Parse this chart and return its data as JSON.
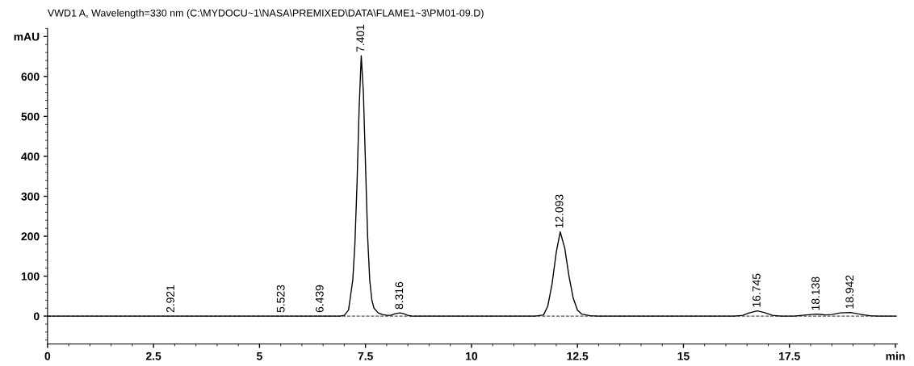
{
  "chart_data": {
    "type": "line",
    "title": "VWD1 A, Wavelength=330 nm (C:\\MYDOCU~1\\NASA\\PREMIXED\\DATA\\FLAME1~3\\PM01-09.D)",
    "series": [
      {
        "color": "#000000",
        "x": [
          0,
          2.7,
          2.92,
          3.1,
          5.4,
          5.52,
          5.7,
          6.3,
          6.44,
          6.6,
          6.9,
          7.0,
          7.1,
          7.2,
          7.25,
          7.3,
          7.35,
          7.4,
          7.45,
          7.5,
          7.55,
          7.6,
          7.65,
          7.7,
          7.8,
          7.9,
          8.0,
          8.1,
          8.2,
          8.316,
          8.4,
          8.5,
          8.6,
          11.5,
          11.7,
          11.8,
          11.9,
          12.0,
          12.093,
          12.2,
          12.3,
          12.4,
          12.5,
          12.6,
          12.8,
          13.0,
          16.2,
          16.4,
          16.55,
          16.745,
          16.9,
          17.1,
          17.3,
          17.6,
          17.9,
          18.138,
          18.35,
          18.5,
          18.7,
          18.942,
          19.2,
          19.4,
          19.6,
          20
        ],
        "values": [
          0,
          0,
          0,
          0,
          0,
          0,
          0,
          0,
          0,
          0,
          0,
          2,
          15,
          90,
          180,
          330,
          520,
          652,
          560,
          380,
          200,
          90,
          40,
          20,
          8,
          4,
          2,
          2,
          6,
          8,
          6,
          2,
          0,
          0,
          3,
          25,
          80,
          160,
          211,
          170,
          100,
          45,
          15,
          5,
          1,
          0,
          0,
          2,
          8,
          13,
          9,
          2,
          0,
          0,
          3,
          5,
          3,
          4,
          8,
          9,
          4,
          1,
          0,
          0
        ]
      }
    ],
    "xlim": [
      0,
      20.05
    ],
    "ylim": [
      -70,
      720
    ],
    "xticks": [
      0,
      2.5,
      5,
      7.5,
      10,
      12.5,
      15,
      17.5,
      {
        "value": 20,
        "label": "min"
      }
    ],
    "yticks": [
      0,
      100,
      200,
      300,
      400,
      500,
      600,
      {
        "value": 700,
        "label": "mAU"
      }
    ],
    "ref_lines": [
      {
        "axis": "y",
        "value": 0,
        "color": "#555555",
        "line_style": "dashed"
      }
    ],
    "annotations": [
      {
        "text": "2.921",
        "x": 2.921,
        "y": 0
      },
      {
        "text": "5.523",
        "x": 5.523,
        "y": 0
      },
      {
        "text": "6.439",
        "x": 6.439,
        "y": 0
      },
      {
        "text": "7.401",
        "x": 7.401,
        "y": 652
      },
      {
        "text": "8.316",
        "x": 8.316,
        "y": 8
      },
      {
        "text": "12.093",
        "x": 12.093,
        "y": 211
      },
      {
        "text": "16.745",
        "x": 16.745,
        "y": 13
      },
      {
        "text": "18.138",
        "x": 18.138,
        "y": 5
      },
      {
        "text": "18.942",
        "x": 18.942,
        "y": 9
      }
    ],
    "grid": false,
    "legend": false,
    "marker": "none",
    "line_style": "solid"
  }
}
